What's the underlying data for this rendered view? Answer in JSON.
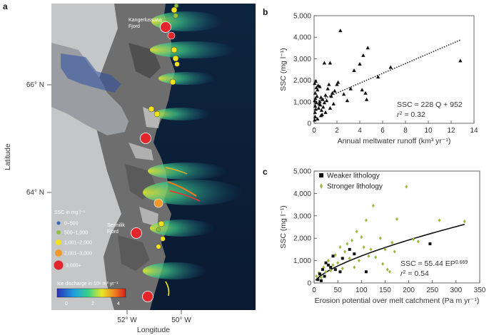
{
  "panel_a": {
    "letter": "a",
    "xlabel": "Longitude",
    "ylabel": "Latitude",
    "lon_ticks": [
      "52° W",
      "50° W"
    ],
    "lat_ticks": [
      "66° N",
      "64° N"
    ],
    "place_labels": [
      {
        "line1": "Kangerlussuaq",
        "line2": "Fjord"
      },
      {
        "line1": "Sermilik",
        "line2": "Fjord"
      }
    ],
    "ssc_legend": {
      "title": "SSC in mg l⁻¹",
      "items": [
        {
          "label": "0–500",
          "color": "#2e66b8"
        },
        {
          "label": "500–1,000",
          "color": "#8fbf3f"
        },
        {
          "label": "1,001–2,000",
          "color": "#f2e21c"
        },
        {
          "label": "2,001–3,000",
          "color": "#f0982a"
        },
        {
          "label": "3,000+",
          "color": "#e3262c"
        }
      ]
    },
    "colorbar": {
      "title": "Ice discharge in 10⁶ m³ yr⁻¹",
      "tick_labels": [
        "0",
        "2",
        "4"
      ]
    }
  },
  "chart_data": [
    {
      "panel": "b",
      "type": "scatter",
      "xlabel": "Annual meltwater runoff (km³ yr⁻¹)",
      "ylabel": "SSC (mg l⁻¹)",
      "xlim": [
        0,
        14
      ],
      "ylim": [
        0,
        5000
      ],
      "x_ticks": [
        "0",
        "2",
        "4",
        "6",
        "8",
        "10",
        "12",
        "14"
      ],
      "y_ticks": [
        "0",
        "1,000",
        "2,000",
        "3,000",
        "4,000",
        "5,000"
      ],
      "grid": false,
      "equation": "SSC = 228 Q + 952",
      "r2_symbol": "r",
      "r2_value": " = 0.32",
      "trendline": {
        "slope": 228,
        "intercept": 952,
        "x_range": [
          0,
          12.8
        ]
      },
      "points": [
        [
          0.05,
          150
        ],
        [
          0.1,
          300
        ],
        [
          0.08,
          500
        ],
        [
          0.15,
          650
        ],
        [
          0.1,
          800
        ],
        [
          0.2,
          950
        ],
        [
          0.05,
          1050
        ],
        [
          0.12,
          1150
        ],
        [
          0.25,
          1250
        ],
        [
          0.1,
          1400
        ],
        [
          0.3,
          1550
        ],
        [
          0.2,
          1650
        ],
        [
          0.35,
          1750
        ],
        [
          0.05,
          1850
        ],
        [
          0.4,
          700
        ],
        [
          0.45,
          900
        ],
        [
          0.5,
          1000
        ],
        [
          0.55,
          850
        ],
        [
          0.6,
          1200
        ],
        [
          0.65,
          600
        ],
        [
          0.7,
          400
        ],
        [
          0.75,
          1100
        ],
        [
          0.8,
          750
        ],
        [
          0.9,
          950
        ],
        [
          1.0,
          1300
        ],
        [
          1.1,
          1050
        ],
        [
          1.2,
          1600
        ],
        [
          1.3,
          1800
        ],
        [
          1.4,
          700
        ],
        [
          1.5,
          1250
        ],
        [
          1.6,
          1400
        ],
        [
          1.7,
          900
        ],
        [
          1.8,
          1500
        ],
        [
          0.9,
          2800
        ],
        [
          1.4,
          2800
        ],
        [
          2.0,
          1800
        ],
        [
          2.1,
          1900
        ],
        [
          2.3,
          4300
        ],
        [
          2.6,
          1350
        ],
        [
          2.9,
          1050
        ],
        [
          3.2,
          1600
        ],
        [
          3.5,
          2450
        ],
        [
          4.0,
          2750
        ],
        [
          4.2,
          1550
        ],
        [
          4.3,
          3150
        ],
        [
          4.5,
          1400
        ],
        [
          4.7,
          3500
        ],
        [
          4.6,
          1100
        ],
        [
          5.6,
          2150
        ],
        [
          6.7,
          2600
        ],
        [
          12.8,
          2900
        ],
        [
          0.3,
          200
        ],
        [
          0.6,
          350
        ],
        [
          1.0,
          500
        ],
        [
          0.15,
          1950
        ],
        [
          0.5,
          1700
        ]
      ]
    },
    {
      "panel": "c",
      "type": "scatter",
      "xlabel": "Erosion potential over melt catchment (Pa m yr⁻¹)",
      "ylabel": "SSC (mg l⁻¹)",
      "xlim": [
        0,
        350
      ],
      "ylim": [
        0,
        5000
      ],
      "x_ticks": [
        "0",
        "50",
        "100",
        "150",
        "200",
        "250",
        "300",
        "350"
      ],
      "y_ticks": [
        "0",
        "1,000",
        "2,000",
        "3,000",
        "4,000",
        "5,000"
      ],
      "grid": false,
      "legend_position": "top-left",
      "equation_prefix": "SSC = 55.44 EP",
      "equation_exponent": "0.669",
      "r2_symbol": "r",
      "r2_value": " = 0.54",
      "fit": {
        "a": 55.44,
        "b": 0.669,
        "x_range": [
          3,
          318
        ]
      },
      "series": [
        {
          "name": "Weaker lithology",
          "color": "#111111",
          "points": [
            [
              8,
              150
            ],
            [
              12,
              400
            ],
            [
              15,
              100
            ],
            [
              18,
              600
            ],
            [
              22,
              300
            ],
            [
              25,
              900
            ],
            [
              30,
              800
            ],
            [
              35,
              700
            ],
            [
              40,
              1200
            ],
            [
              45,
              600
            ],
            [
              55,
              500
            ],
            [
              60,
              1100
            ],
            [
              75,
              1500
            ],
            [
              85,
              1300
            ],
            [
              110,
              500
            ],
            [
              245,
              1750
            ]
          ]
        },
        {
          "name": "Stronger lithology",
          "color": "#9ab83e",
          "points": [
            [
              5,
              300
            ],
            [
              10,
              450
            ],
            [
              15,
              250
            ],
            [
              20,
              700
            ],
            [
              25,
              500
            ],
            [
              30,
              1000
            ],
            [
              35,
              550
            ],
            [
              40,
              800
            ],
            [
              45,
              1250
            ],
            [
              50,
              900
            ],
            [
              55,
              1600
            ],
            [
              60,
              650
            ],
            [
              65,
              1400
            ],
            [
              70,
              1750
            ],
            [
              75,
              1100
            ],
            [
              80,
              1900
            ],
            [
              85,
              700
            ],
            [
              90,
              2300
            ],
            [
              95,
              1000
            ],
            [
              100,
              2050
            ],
            [
              105,
              1600
            ],
            [
              110,
              2800
            ],
            [
              115,
              1200
            ],
            [
              120,
              1500
            ],
            [
              125,
              3450
            ],
            [
              130,
              1150
            ],
            [
              140,
              2000
            ],
            [
              145,
              850
            ],
            [
              150,
              1500
            ],
            [
              155,
              600
            ],
            [
              160,
              500
            ],
            [
              165,
              1800
            ],
            [
              170,
              1400
            ],
            [
              175,
              2850
            ],
            [
              195,
              4300
            ],
            [
              210,
              1950
            ],
            [
              220,
              1850
            ],
            [
              265,
              2800
            ],
            [
              318,
              2750
            ]
          ]
        }
      ]
    }
  ],
  "panel_letters": {
    "b": "b",
    "c": "c"
  }
}
